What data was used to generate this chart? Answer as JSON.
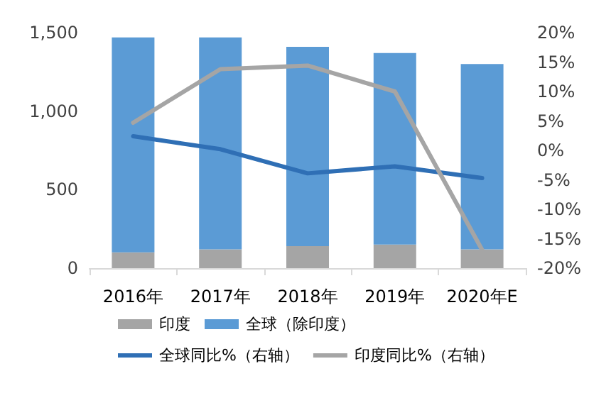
{
  "chart_data": {
    "type": "bar",
    "stacked": true,
    "categories": [
      "2016年",
      "2017年",
      "2018年",
      "2019年",
      "2020年E"
    ],
    "series": [
      {
        "name": "印度",
        "color": "#a5a5a5",
        "values": [
          100,
          120,
          140,
          150,
          120
        ]
      },
      {
        "name": "全球（除印度）",
        "color": "#5b9bd5",
        "values": [
          1370,
          1350,
          1270,
          1220,
          1180
        ]
      },
      {
        "name": "全球同比%（右轴）",
        "type": "line",
        "axis": "y2",
        "color": "#2f6fb5",
        "values": [
          2.4,
          0.2,
          -3.9,
          -2.7,
          -4.7
        ]
      },
      {
        "name": "印度同比%（右轴）",
        "type": "line",
        "axis": "y2",
        "color": "#a5a5a5",
        "values": [
          4.7,
          13.8,
          14.4,
          10.0,
          -16.9
        ]
      }
    ],
    "ylim": [
      0,
      1500
    ],
    "yticks": [
      {
        "value": 0,
        "label": "0"
      },
      {
        "value": 500,
        "label": "500"
      },
      {
        "value": 1000,
        "label": "1,000"
      },
      {
        "value": 1500,
        "label": "1,500"
      }
    ],
    "y2lim": [
      -20,
      20
    ],
    "y2ticks": [
      {
        "value": -20,
        "label": "-20%"
      },
      {
        "value": -15,
        "label": "-15%"
      },
      {
        "value": -10,
        "label": "-10%"
      },
      {
        "value": -5,
        "label": "-5%"
      },
      {
        "value": 0,
        "label": "0%"
      },
      {
        "value": 5,
        "label": "5%"
      },
      {
        "value": 10,
        "label": "10%"
      },
      {
        "value": 15,
        "label": "15%"
      },
      {
        "value": 20,
        "label": "20%"
      }
    ],
    "legend": "bottom",
    "grid": false,
    "marker": "none"
  }
}
